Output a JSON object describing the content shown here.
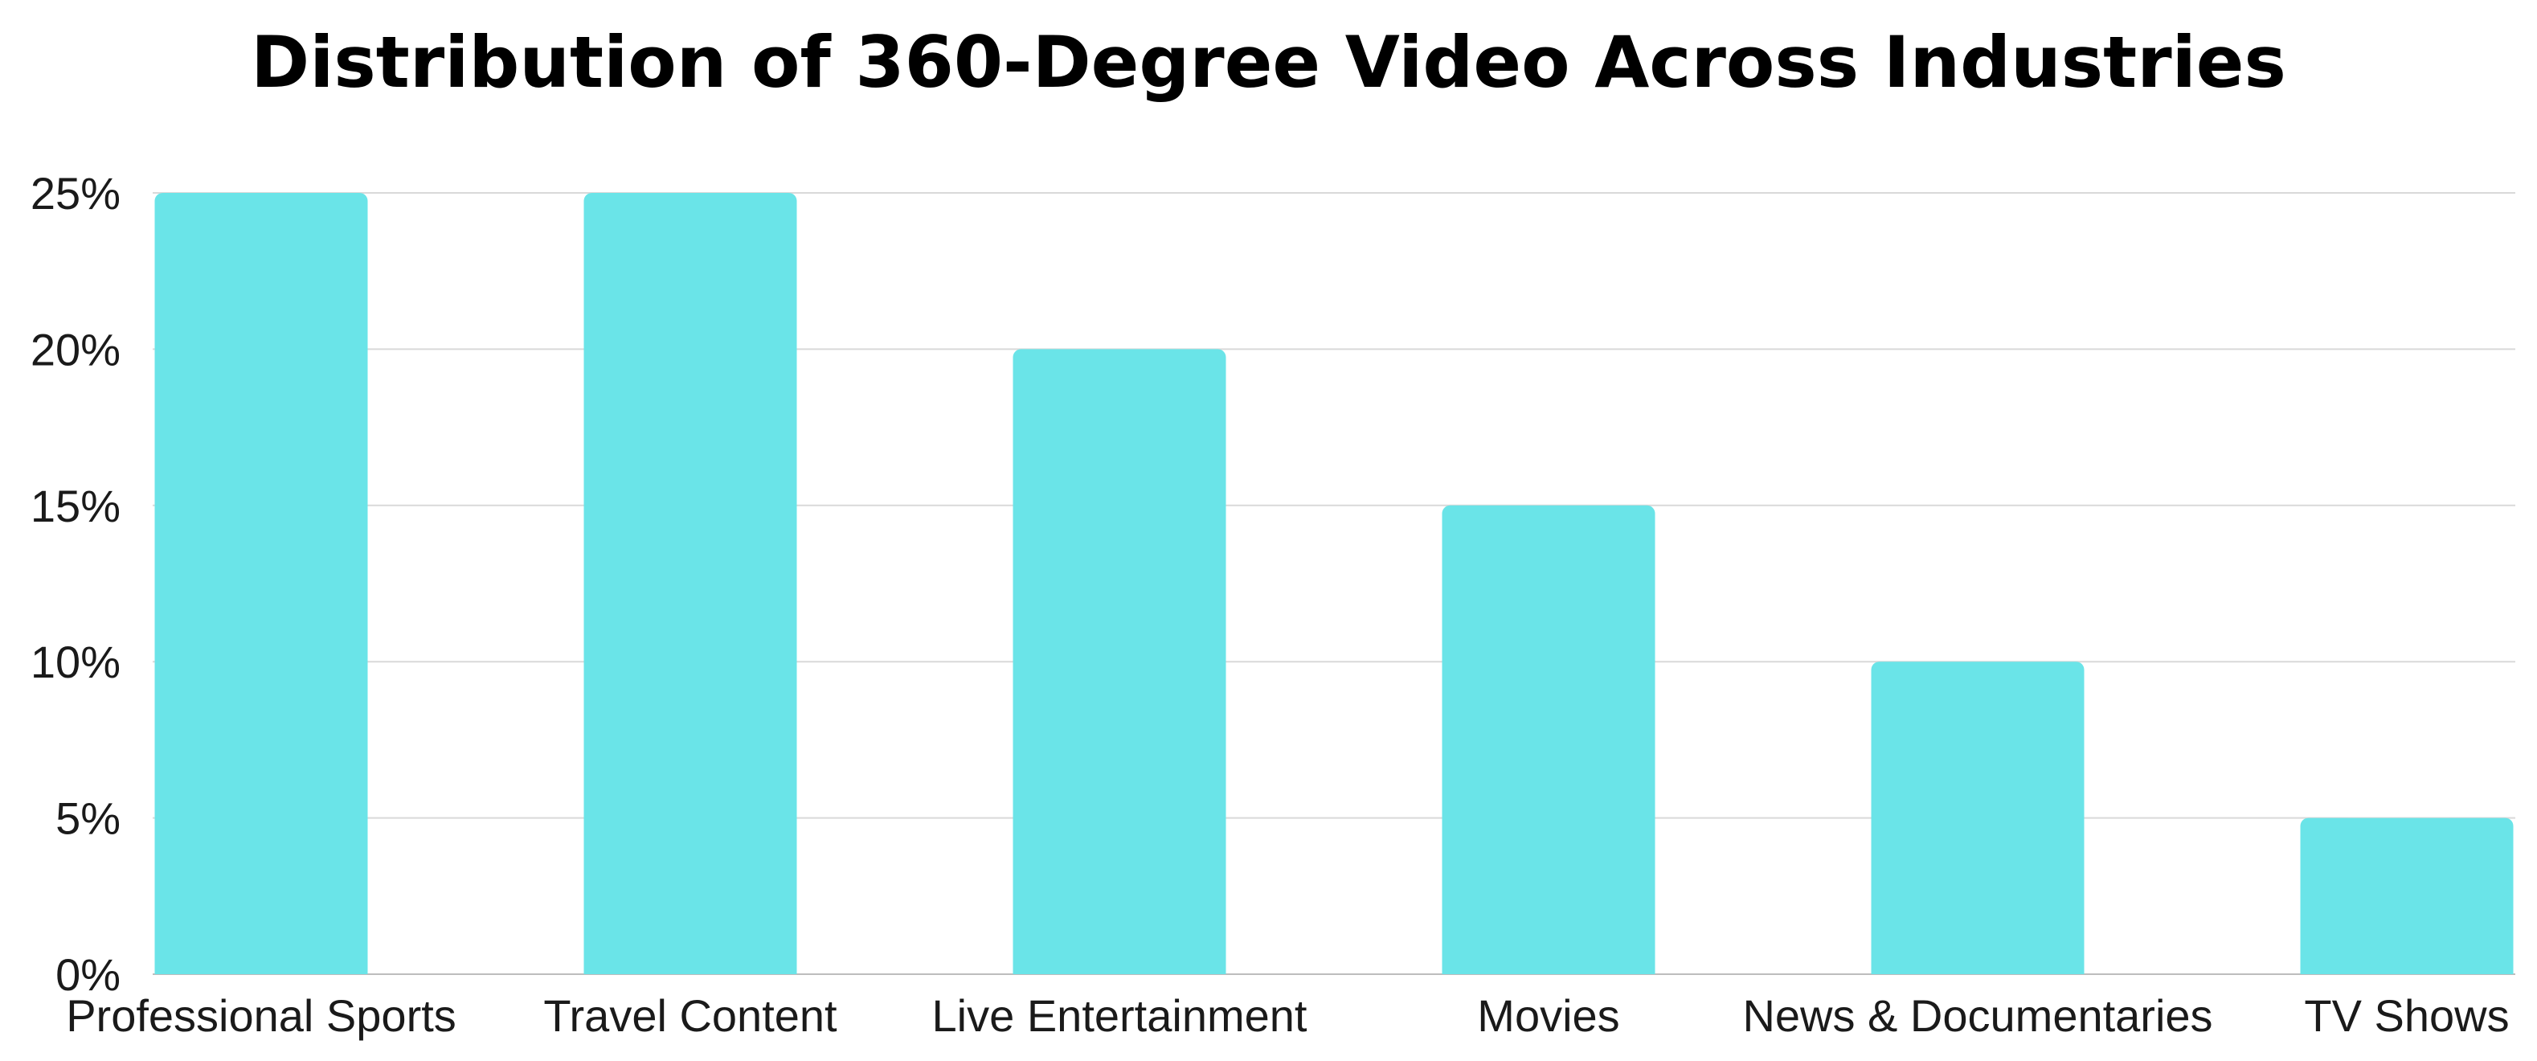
{
  "chart_data": {
    "type": "bar",
    "title": "Distribution of 360-Degree Video Across Industries",
    "categories": [
      "Professional Sports",
      "Travel Content",
      "Live Entertainment",
      "Movies",
      "News & Documentaries",
      "TV Shows"
    ],
    "values": [
      25,
      25,
      20,
      15,
      10,
      5
    ],
    "ylim": [
      0,
      25
    ],
    "yticks": [
      0,
      5,
      10,
      15,
      20,
      25
    ],
    "ytick_labels": [
      "0%",
      "5%",
      "10%",
      "15%",
      "20%",
      "25%"
    ],
    "grid": true,
    "bar_color": "#6ae4e8"
  }
}
